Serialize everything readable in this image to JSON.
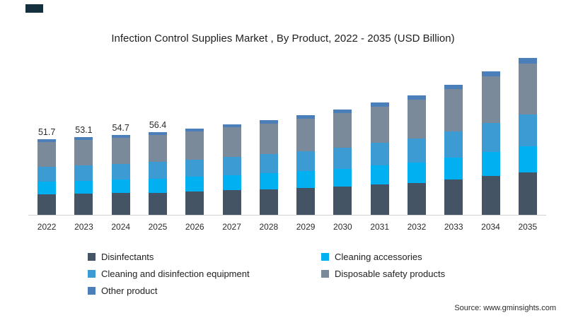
{
  "page": {
    "title": "Infection Control Supplies Market , By Product, 2022 - 2035 (USD Billion)",
    "source": "Source: www.gminsights.com"
  },
  "chart_data": {
    "type": "bar",
    "stacked": true,
    "title": "Infection Control Supplies Market , By Product, 2022 - 2035 (USD Billion)",
    "xlabel": "",
    "ylabel": "USD Billion",
    "ylim": [
      0,
      110
    ],
    "grid": false,
    "legend_position": "bottom",
    "categories": [
      "2022",
      "2023",
      "2024",
      "2025",
      "2026",
      "2027",
      "2028",
      "2029",
      "2030",
      "2031",
      "2032",
      "2033",
      "2034",
      "2035"
    ],
    "data_labels": [
      "51.7",
      "53.1",
      "54.7",
      "56.4",
      "",
      "",
      "",
      "",
      "",
      "",
      "",
      "",
      "",
      ""
    ],
    "totals": [
      51.7,
      53.1,
      54.7,
      56.4,
      59.0,
      61.9,
      64.7,
      68.0,
      72.0,
      76.8,
      81.6,
      88.9,
      98.0,
      107.2
    ],
    "series": [
      {
        "name": "Disinfectants",
        "color": "#445464",
        "values": [
          14.0,
          14.3,
          14.8,
          15.2,
          15.9,
          16.7,
          17.5,
          18.4,
          19.4,
          20.7,
          22.0,
          24.0,
          26.5,
          28.9
        ]
      },
      {
        "name": "Cleaning accessories",
        "color": "#00b0f0",
        "values": [
          8.8,
          9.0,
          9.3,
          9.6,
          10.0,
          10.5,
          11.0,
          11.6,
          12.2,
          13.1,
          13.9,
          15.1,
          16.7,
          18.2
        ]
      },
      {
        "name": "Cleaning and disinfection equipment",
        "color": "#3d9bd3",
        "values": [
          10.3,
          10.6,
          10.9,
          11.3,
          11.8,
          12.4,
          12.9,
          13.6,
          14.4,
          15.4,
          16.3,
          17.8,
          19.6,
          21.4
        ]
      },
      {
        "name": "Disposable safety products",
        "color": "#7b8a9a",
        "values": [
          16.8,
          17.3,
          17.8,
          18.3,
          19.2,
          20.1,
          21.0,
          22.1,
          23.4,
          25.0,
          26.5,
          28.9,
          31.8,
          34.9
        ]
      },
      {
        "name": "Other product",
        "color": "#4a7fba",
        "values": [
          1.8,
          1.9,
          1.9,
          2.0,
          2.1,
          2.2,
          2.3,
          2.3,
          2.6,
          2.6,
          2.9,
          3.1,
          3.4,
          3.8
        ]
      }
    ]
  }
}
